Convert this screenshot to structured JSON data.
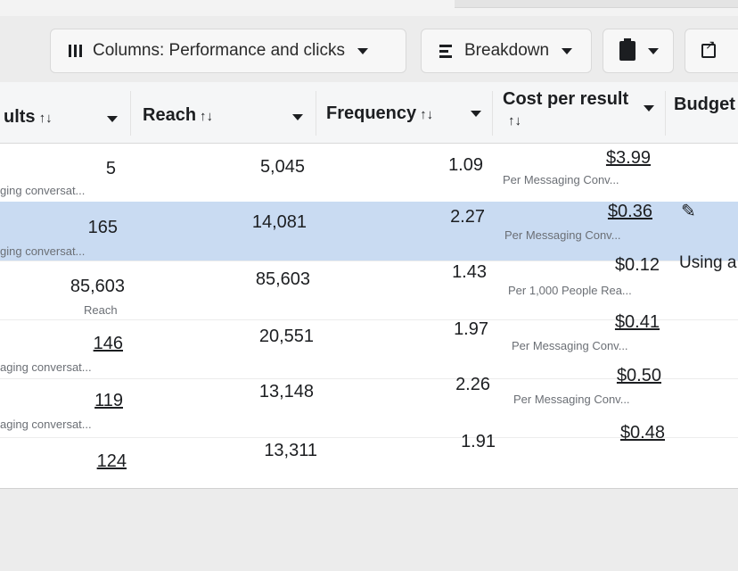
{
  "toolbar": {
    "columns_label": "Columns: Performance and clicks",
    "breakdown_label": "Breakdown"
  },
  "table": {
    "headers": {
      "results": "ults",
      "reach": "Reach",
      "frequency": "Frequency",
      "cost_per_result": "Cost per result",
      "budget": "Budget"
    },
    "sort_glyph": "↑↓",
    "rows": [
      {
        "results": "5",
        "results_sub": "ging conversat...",
        "reach": "5,045",
        "frequency": "1.09",
        "cost": "$3.99",
        "cost_sub": "Per Messaging Conv..."
      },
      {
        "results": "165",
        "results_sub": "ging conversat...",
        "reach": "14,081",
        "frequency": "2.27",
        "cost": "$0.36",
        "cost_sub": "Per Messaging Conv...",
        "selected": true
      },
      {
        "results": "85,603",
        "results_sub": "Reach",
        "reach": "85,603",
        "frequency": "1.43",
        "cost": "$0.12",
        "cost_sub": "Per 1,000 People Rea...",
        "budget": "Using a"
      },
      {
        "results": "146",
        "results_sub": "aging conversat...",
        "reach": "20,551",
        "frequency": "1.97",
        "cost": "$0.41",
        "cost_sub": "Per Messaging Conv..."
      },
      {
        "results": "119",
        "results_sub": "aging conversat...",
        "reach": "13,148",
        "frequency": "2.26",
        "cost": "$0.50",
        "cost_sub": "Per Messaging Conv..."
      },
      {
        "results": "124",
        "results_sub": "",
        "reach": "13,311",
        "frequency": "1.91",
        "cost": "$0.48",
        "cost_sub": ""
      }
    ]
  },
  "icons": {
    "columns": "columns-icon",
    "breakdown": "breakdown-icon",
    "export": "clipboard-icon",
    "share": "open-external-icon",
    "edit": "pencil-icon"
  },
  "colors": {
    "selected_row": "#c9dbf2",
    "header_bg": "#f5f6f7"
  }
}
